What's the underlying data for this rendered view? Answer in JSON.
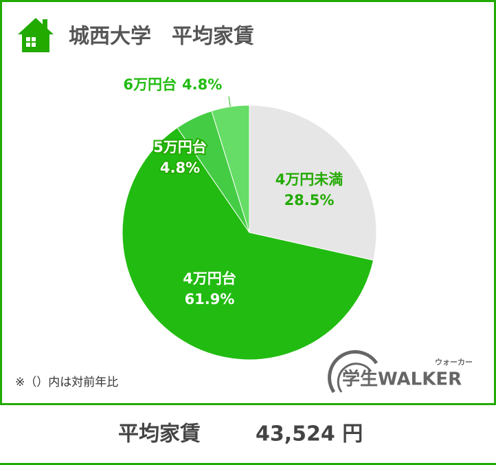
{
  "chart_data": {
    "type": "pie",
    "title": "城西大学　平均家賃",
    "categories": [
      "4万円未満",
      "4万円台",
      "5万円台",
      "6万円台"
    ],
    "values": [
      28.5,
      61.9,
      4.8,
      4.8
    ],
    "value_labels": [
      "28.5%",
      "61.9%",
      "4.8%",
      "4.8%"
    ],
    "colors": [
      "#e6e6e6",
      "#22bb11",
      "#44cc44",
      "#66dd66"
    ],
    "start_angle": 0,
    "direction": "clockwise"
  },
  "note": "※（）内は対前年比",
  "logo": {
    "main": "学生WALKER",
    "reading": "ウォーカー"
  },
  "footer": {
    "label": "平均家賃",
    "amount": "43,524 円"
  }
}
